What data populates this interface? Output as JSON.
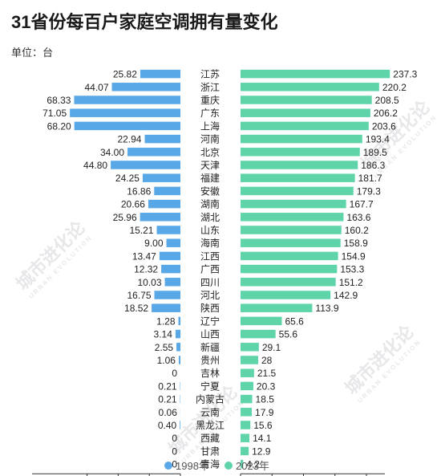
{
  "title": "31省份每百户家庭空调拥有量变化",
  "unit": "单位：台",
  "watermark": "城市进化论",
  "watermark_sub": "URBAN EVOLUTION",
  "colors": {
    "y1998": "#58a8e8",
    "y2023": "#5fd4a8"
  },
  "chart_data": {
    "type": "bar",
    "orientation": "horizontal-butterfly",
    "categories": [
      "江苏",
      "浙江",
      "重庆",
      "广东",
      "上海",
      "河南",
      "北京",
      "天津",
      "福建",
      "安徽",
      "湖南",
      "湖北",
      "山东",
      "海南",
      "江西",
      "广西",
      "四川",
      "河北",
      "陕西",
      "辽宁",
      "山西",
      "新疆",
      "贵州",
      "吉林",
      "宁夏",
      "内蒙古",
      "云南",
      "黑龙江",
      "西藏",
      "甘肃",
      "青海"
    ],
    "series": [
      {
        "name": "1998年",
        "values": [
          25.82,
          44.07,
          68.33,
          71.05,
          68.2,
          22.94,
          34.0,
          44.8,
          24.25,
          16.86,
          20.66,
          25.96,
          15.21,
          9.0,
          13.47,
          12.32,
          10.03,
          16.75,
          18.52,
          1.28,
          3.14,
          2.55,
          1.06,
          0,
          0.21,
          0.21,
          0.06,
          0.4,
          0,
          0,
          0
        ]
      },
      {
        "name": "2023年",
        "values": [
          237.3,
          220.2,
          208.5,
          206.2,
          203.6,
          193.4,
          189.5,
          186.3,
          181.7,
          179.3,
          167.7,
          163.6,
          160.2,
          158.9,
          154.9,
          153.3,
          151.2,
          142.9,
          113.9,
          65.6,
          55.6,
          29.1,
          28,
          21.5,
          20.3,
          18.5,
          17.9,
          15.6,
          14.1,
          12.9,
          4.2
        ]
      }
    ],
    "labels_1998": [
      "25.82",
      "44.07",
      "68.33",
      "71.05",
      "68.20",
      "22.94",
      "34.00",
      "44.80",
      "24.25",
      "16.86",
      "20.66",
      "25.96",
      "15.21",
      "9.00",
      "13.47",
      "12.32",
      "10.03",
      "16.75",
      "18.52",
      "1.28",
      "3.14",
      "2.55",
      "1.06",
      "0",
      "0.21",
      "0.21",
      "0.06",
      "0.40",
      "0",
      "0",
      "0"
    ],
    "labels_2023": [
      "237.3",
      "220.2",
      "208.5",
      "206.2",
      "203.6",
      "193.4",
      "189.5",
      "186.3",
      "181.7",
      "179.3",
      "167.7",
      "163.6",
      "160.2",
      "158.9",
      "154.9",
      "153.3",
      "151.2",
      "142.9",
      "113.9",
      "65.6",
      "55.6",
      "29.1",
      "28",
      "21.5",
      "20.3",
      "18.5",
      "17.9",
      "15.6",
      "14.1",
      "12.9",
      "4.2"
    ],
    "left_axis": {
      "ticks": [
        60,
        40,
        20,
        0
      ],
      "range": [
        0,
        72
      ]
    },
    "right_axis": {
      "ticks": [
        0,
        50,
        100,
        150,
        200
      ],
      "range": [
        0,
        240
      ]
    }
  }
}
